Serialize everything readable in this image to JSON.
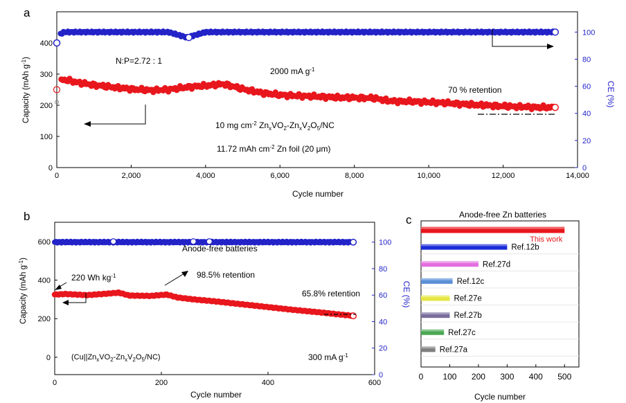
{
  "chart_data": [
    {
      "panel": "a",
      "type": "scatter",
      "xlabel": "Cycle number",
      "ylabel": "Capacity (mAh g⁻¹)",
      "y2label": "CE (%)",
      "xlim": [
        0,
        14000
      ],
      "ylim": [
        0,
        500
      ],
      "y2lim": [
        0,
        115
      ],
      "xticks": [
        "0",
        "2,000",
        "4,000",
        "6,000",
        "8,000",
        "10,000",
        "12,000",
        "14,000"
      ],
      "yticks": [
        "0",
        "100",
        "200",
        "300",
        "400"
      ],
      "y2ticks": [
        "0",
        "20",
        "40",
        "60",
        "80",
        "100"
      ],
      "series": [
        {
          "name": "Capacity",
          "color": "#e8171d",
          "x": [
            0,
            50,
            150,
            300,
            600,
            1000,
            1500,
            2000,
            2500,
            3000,
            3500,
            4000,
            4500,
            5000,
            5500,
            6000,
            6500,
            7000,
            7500,
            8000,
            8500,
            9000,
            9500,
            10000,
            10500,
            11000,
            11500,
            12000,
            12500,
            13000,
            13400
          ],
          "y": [
            250,
            272,
            282,
            280,
            272,
            265,
            258,
            252,
            248,
            250,
            258,
            263,
            268,
            252,
            240,
            233,
            230,
            228,
            225,
            224,
            223,
            213,
            212,
            210,
            207,
            203,
            200,
            197,
            195,
            193,
            193
          ]
        },
        {
          "name": "CE",
          "color": "#2323c8",
          "x": [
            0,
            50,
            200,
            500,
            1000,
            2000,
            3000,
            3500,
            4000,
            5000,
            6000,
            7000,
            8000,
            9000,
            10000,
            11000,
            12000,
            13000,
            13400
          ],
          "y": [
            92,
            98,
            100,
            100,
            100,
            100,
            100,
            96,
            100,
            100,
            100,
            100,
            100,
            100,
            100,
            100,
            100,
            100,
            100
          ]
        }
      ],
      "annotations": [
        "N:P=2.72 : 1",
        "2000 mA g⁻¹",
        "70 % retention",
        "10 mg cm⁻² ZnxVO2-ZnxV2O5/NC",
        "11.72 mAh cm⁻² Zn foil (20 μm)"
      ]
    },
    {
      "panel": "b",
      "type": "scatter",
      "xlabel": "Cycle number",
      "ylabel": "Capacity (mAh g⁻¹)",
      "y2label": "CE (%)",
      "xlim": [
        0,
        600
      ],
      "ylim": [
        -90,
        700
      ],
      "y2lim": [
        0,
        115
      ],
      "xticks": [
        "0",
        "200",
        "400",
        "600"
      ],
      "yticks": [
        "0",
        "200",
        "400",
        "600"
      ],
      "y2ticks": [
        "0",
        "20",
        "40",
        "60",
        "80",
        "100"
      ],
      "series": [
        {
          "name": "Capacity",
          "color": "#e8171d",
          "x": [
            0,
            20,
            60,
            100,
            120,
            140,
            180,
            210,
            230,
            260,
            300,
            350,
            400,
            450,
            500,
            540,
            560
          ],
          "y": [
            325,
            328,
            322,
            330,
            335,
            320,
            318,
            325,
            310,
            300,
            290,
            275,
            260,
            245,
            232,
            220,
            215
          ]
        },
        {
          "name": "CE",
          "color": "#2323c8",
          "x": [
            0,
            100,
            200,
            300,
            400,
            500,
            560
          ],
          "y": [
            100,
            100,
            100,
            100,
            100,
            100,
            100
          ]
        }
      ],
      "annotations": [
        "Anode-free batteries",
        "220 Wh kg⁻¹",
        "98.5% retention",
        "65.8% retention",
        "(Cu||ZnxVO2-ZnxV2O5/NC)",
        "300 mA g⁻¹"
      ]
    },
    {
      "panel": "c",
      "type": "bar",
      "title": "Anode-free Zn batteries",
      "xlabel": "Cycle number",
      "xlim": [
        0,
        550
      ],
      "xticks": [
        "0",
        "100",
        "200",
        "300",
        "400",
        "500"
      ],
      "categories": [
        "This work",
        "Ref.12b",
        "Ref.27d",
        "Ref.12c",
        "Ref.27e",
        "Ref.27b",
        "Ref.27c",
        "Ref.27a"
      ],
      "values": [
        500,
        300,
        200,
        110,
        100,
        100,
        80,
        50
      ],
      "colors": [
        "#e8171d",
        "#1c2bd8",
        "#e36ee0",
        "#5b8fd8",
        "#e6e640",
        "#7a6e9e",
        "#4aa852",
        "#808080"
      ]
    }
  ],
  "panel_labels": {
    "a": "a",
    "b": "b",
    "c": "c"
  },
  "text": {
    "a_xlabel": "Cycle number",
    "a_ylabel": "Capacity (mAh g",
    "a_y2label": "CE (%)",
    "a_np": "N:P=2.72 : 1",
    "a_rate": "2000 mA g",
    "a_ret": "70 % retention",
    "a_load": "10 mg cm",
    "a_load2": " Zn",
    "a_load3": "VO",
    "a_load4": "-Zn",
    "a_load5": "V",
    "a_load6": "O",
    "a_load7": "/NC",
    "a_foil": "11.72 mAh cm",
    "a_foil2": " Zn foil (20 μm)",
    "b_xlabel": "Cycle number",
    "b_ylabel": "Capacity (mAh g",
    "b_y2label": "CE (%)",
    "b_anode": "Anode-free batteries",
    "b_wh": "220 Wh kg",
    "b_r1": "98.5% retention",
    "b_r2": "65.8% retention",
    "b_cell": "(Cu||Zn",
    "b_rate": "300 mA g",
    "c_title": "Anode-free Zn batteries",
    "c_xlabel": "Cycle number"
  }
}
